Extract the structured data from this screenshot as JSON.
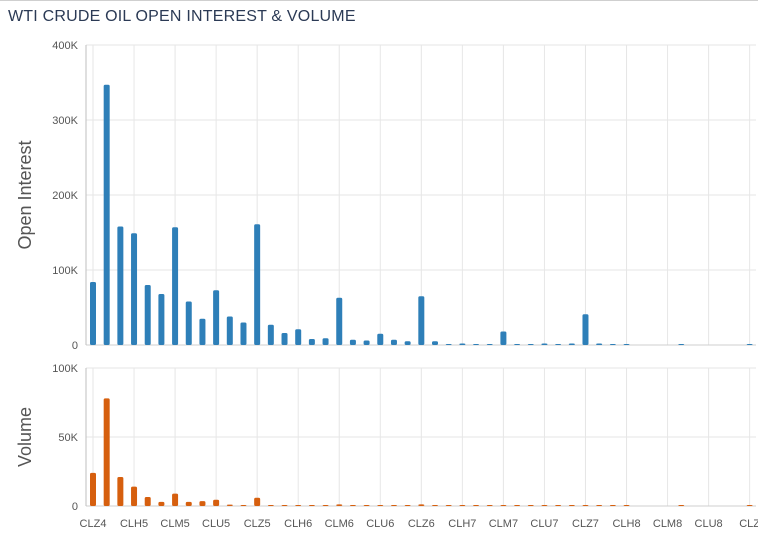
{
  "title": "WTI CRUDE OIL OPEN INTEREST & VOLUME",
  "chart_data": [
    {
      "type": "bar",
      "name": "open-interest",
      "ylabel": "Open Interest",
      "ylim": [
        0,
        400000
      ],
      "yticks": [
        0,
        100000,
        200000,
        300000,
        400000
      ],
      "ytick_labels": [
        "0",
        "100K",
        "200K",
        "300K",
        "400K"
      ],
      "color": "#2e7fb8",
      "grid": true,
      "values": [
        84000,
        347000,
        158000,
        149000,
        80000,
        68000,
        157000,
        58000,
        35000,
        73000,
        38000,
        30000,
        161000,
        27000,
        16000,
        21000,
        8000,
        9000,
        63000,
        7000,
        6000,
        15000,
        7000,
        5000,
        65000,
        5000,
        1000,
        2000,
        1000,
        1000,
        18000,
        1000,
        1000,
        2000,
        1000,
        2000,
        41000,
        2000,
        1000,
        1000,
        0,
        0,
        0,
        1000,
        0,
        0,
        0,
        0,
        1000,
        2000,
        10000
      ]
    },
    {
      "type": "bar",
      "name": "volume",
      "ylabel": "Volume",
      "ylim": [
        0,
        100000
      ],
      "yticks": [
        0,
        50000,
        100000
      ],
      "ytick_labels": [
        "0",
        "50K",
        "100K"
      ],
      "color": "#d65f0e",
      "grid": true,
      "values": [
        24000,
        78000,
        21000,
        14000,
        6500,
        3000,
        9000,
        3000,
        3500,
        4500,
        1000,
        500,
        6000,
        400,
        300,
        300,
        200,
        200,
        1200,
        200,
        100,
        100,
        100,
        100,
        1200,
        100,
        50,
        50,
        50,
        50,
        300,
        50,
        50,
        50,
        50,
        50,
        400,
        50,
        50,
        50,
        0,
        0,
        0,
        50,
        0,
        0,
        0,
        0,
        50,
        50,
        600
      ]
    }
  ],
  "x_ticks": [
    "CLZ4",
    "CLH5",
    "CLM5",
    "CLU5",
    "CLZ5",
    "CLH6",
    "CLM6",
    "CLU6",
    "CLZ6",
    "CLH7",
    "CLM7",
    "CLU7",
    "CLZ7",
    "CLH8",
    "CLM8",
    "CLU8",
    "CLZ"
  ]
}
